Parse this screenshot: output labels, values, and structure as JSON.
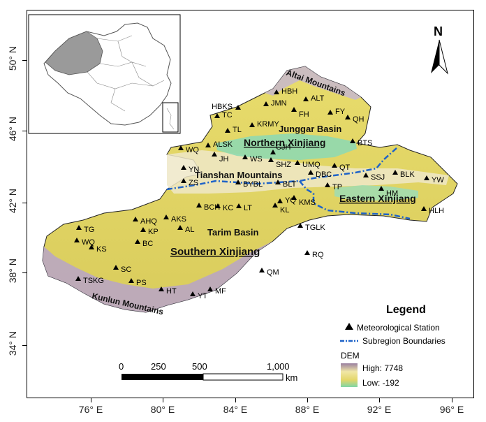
{
  "map": {
    "lat_ticks": [
      "50° N",
      "46° N",
      "42° N",
      "38° N",
      "34° N"
    ],
    "lon_ticks": [
      "76° E",
      "80° E",
      "84° E",
      "88° E",
      "92° E",
      "96° E"
    ],
    "north_arrow_label": "N",
    "regions": {
      "northern": "Northern Xinjiang",
      "eastern": "Eastern Xinjiang",
      "southern": "Southern Xinjiang"
    },
    "geo_labels": {
      "altai": "Altai Mountains",
      "junggar": "Junggar Basin",
      "tianshan": "Tianshan Mountains",
      "tarim": "Tarim Basin",
      "kunlun": "Kunlun Mountains"
    },
    "stations": [
      {
        "code": "HBH"
      },
      {
        "code": "ALT"
      },
      {
        "code": "HBKS"
      },
      {
        "code": "JMN"
      },
      {
        "code": "FH"
      },
      {
        "code": "FY"
      },
      {
        "code": "QH"
      },
      {
        "code": "TC"
      },
      {
        "code": "KRMY"
      },
      {
        "code": "TL"
      },
      {
        "code": "BTS"
      },
      {
        "code": "WQ"
      },
      {
        "code": "ALSK"
      },
      {
        "code": "JH"
      },
      {
        "code": "WS"
      },
      {
        "code": "CJH"
      },
      {
        "code": "SHZ"
      },
      {
        "code": "UMQ"
      },
      {
        "code": "QT"
      },
      {
        "code": "YN"
      },
      {
        "code": "DBC"
      },
      {
        "code": "SSJ"
      },
      {
        "code": "BLK"
      },
      {
        "code": "YW"
      },
      {
        "code": "ZS"
      },
      {
        "code": "BYBL"
      },
      {
        "code": "BLT"
      },
      {
        "code": "TP"
      },
      {
        "code": "HM"
      },
      {
        "code": "YQ"
      },
      {
        "code": "KMS"
      },
      {
        "code": "BCH"
      },
      {
        "code": "KC"
      },
      {
        "code": "LT"
      },
      {
        "code": "KL"
      },
      {
        "code": "HLH"
      },
      {
        "code": "TG"
      },
      {
        "code": "AHQ"
      },
      {
        "code": "AKS"
      },
      {
        "code": "WQ"
      },
      {
        "code": "KP"
      },
      {
        "code": "AL"
      },
      {
        "code": "TGLK"
      },
      {
        "code": "KS"
      },
      {
        "code": "BC"
      },
      {
        "code": "RQ"
      },
      {
        "code": "SC"
      },
      {
        "code": "QM"
      },
      {
        "code": "TSKG"
      },
      {
        "code": "PS"
      },
      {
        "code": "HT"
      },
      {
        "code": "YT"
      },
      {
        "code": "MF"
      }
    ],
    "scale_bar": {
      "labels": [
        "0",
        "250",
        "500",
        "1,000"
      ],
      "unit": "km"
    }
  },
  "legend": {
    "title": "Legend",
    "station_label": "Meteorological Station",
    "boundary_label": "Subregion Boundaries",
    "dem_title": "DEM",
    "dem_high": "High: 7748",
    "dem_low": "Low: -192"
  },
  "colors": {
    "dem_high": "#9a7fa0",
    "dem_mid": "#e6dd7a",
    "dem_low": "#7fd6a6",
    "boundary": "#1f63c8",
    "inset_fill": "#9a9a9a"
  }
}
